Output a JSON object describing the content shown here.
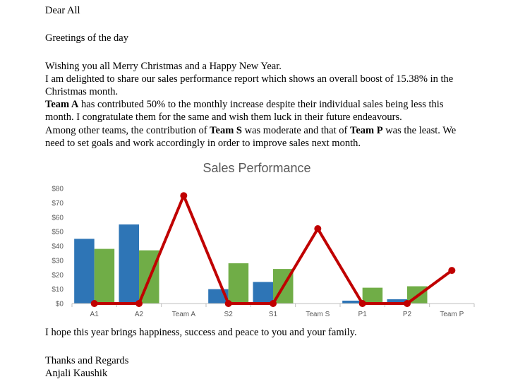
{
  "letter": {
    "salutation": "Dear All",
    "greeting": "Greetings of the day",
    "wishes": "Wishing you all Merry Christmas and a Happy New Year.",
    "para1": "I am delighted to share our sales performance report which shows an overall boost of 15.38% in the Christmas month.",
    "para2_team": "Team A",
    "para2_rest": " has contributed 50% to the monthly increase despite their individual sales being less this month. I congratulate them for the same and wish them luck in their future endeavours.",
    "para3_a": "Among other teams, the contribution of ",
    "para3_teamS": "Team S",
    "para3_b": " was moderate and that of ",
    "para3_teamP": "Team P",
    "para3_c": " was the least. We need to set goals and work accordingly in order to improve sales next month.",
    "closing_line": "I hope this year brings happiness, success and peace to you and your family.",
    "signoff": "Thanks and Regards",
    "signature": "Anjali Kaushik"
  },
  "chart_data": {
    "type": "bar",
    "title": "Sales Performance",
    "categories": [
      "A1",
      "A2",
      "Team A",
      "S2",
      "S1",
      "Team S",
      "P1",
      "P2",
      "Team P"
    ],
    "yticks": [
      "$80",
      "$70",
      "$60",
      "$50",
      "$40",
      "$30",
      "$20",
      "$10",
      "$0"
    ],
    "ylim": [
      0,
      80
    ],
    "series": [
      {
        "type": "bar",
        "color": "#2e75b6",
        "values": [
          45,
          55,
          null,
          10,
          15,
          null,
          2,
          3,
          null
        ]
      },
      {
        "type": "bar",
        "color": "#70ad47",
        "values": [
          38,
          37,
          null,
          28,
          24,
          null,
          11,
          12,
          null
        ]
      },
      {
        "type": "line",
        "color": "#c00000",
        "values": [
          0,
          0,
          75,
          0,
          0,
          52,
          0,
          0,
          23
        ]
      }
    ],
    "grid": false,
    "legend": "none"
  }
}
